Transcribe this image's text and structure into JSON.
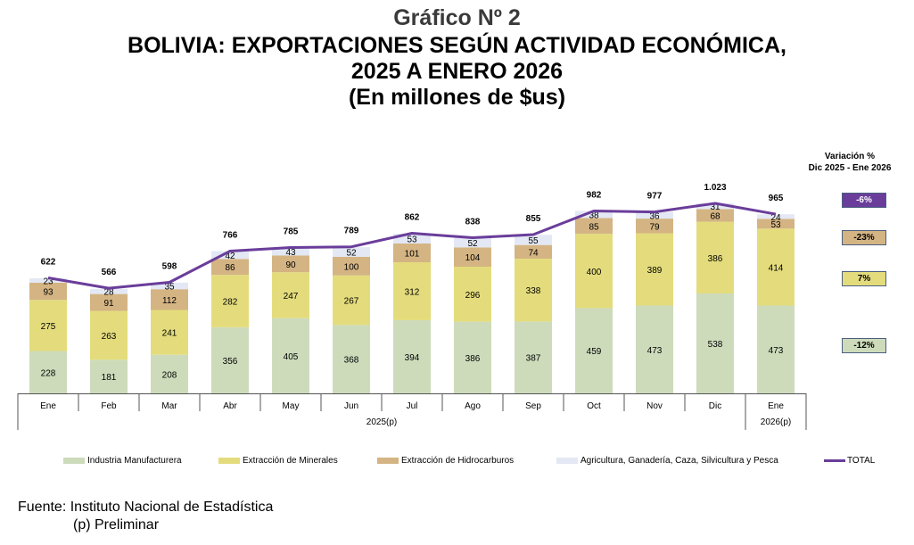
{
  "title": {
    "line1": "Gráfico Nº 2",
    "line2": "BOLIVIA: EXPORTACIONES SEGÚN ACTIVIDAD ECONÓMICA,",
    "line3": "2025 A ENERO 2026",
    "line4": "(En millones de $us)"
  },
  "variation": {
    "header_line1": "Variación %",
    "header_line2": "Dic 2025 - Ene 2026",
    "items": [
      {
        "series": "TOTAL",
        "value": "-6%",
        "color": "#6a3d9a",
        "text_color": "#ffffff"
      },
      {
        "series": "Extracción de Hidrocarburos",
        "value": "-23%",
        "color": "#d4b483",
        "text_color": "#000000"
      },
      {
        "series": "Extracción de Minerales",
        "value": "7%",
        "color": "#e4dc7c",
        "text_color": "#000000"
      },
      {
        "series": "Industria Manufacturera",
        "value": "-12%",
        "color": "#cddbbb",
        "text_color": "#000000"
      }
    ]
  },
  "footer": {
    "source": "Fuente: Instituto Nacional de Estadística",
    "note": "(p) Preliminar"
  },
  "chart_data": {
    "type": "bar",
    "stacked": true,
    "title": "BOLIVIA: EXPORTACIONES SEGÚN ACTIVIDAD ECONÓMICA, 2025 A ENERO 2026",
    "subtitle": "(En millones de $us)",
    "xlabel": "",
    "ylabel": "",
    "ylim": [
      0,
      1100
    ],
    "grid": false,
    "legend_position": "bottom",
    "categories": [
      "Ene",
      "Feb",
      "Mar",
      "Abr",
      "May",
      "Jun",
      "Jul",
      "Ago",
      "Sep",
      "Oct",
      "Nov",
      "Dic",
      "Ene"
    ],
    "category_groups": [
      {
        "label": "2025(p)",
        "count": 12
      },
      {
        "label": "2026(p)",
        "count": 1
      }
    ],
    "series": [
      {
        "name": "Industria Manufacturera",
        "color": "#cddbbb",
        "values": [
          228,
          181,
          208,
          356,
          405,
          368,
          394,
          386,
          387,
          459,
          473,
          538,
          473
        ]
      },
      {
        "name": "Extracción de Minerales",
        "color": "#e4dc7c",
        "values": [
          275,
          263,
          241,
          282,
          247,
          267,
          312,
          296,
          338,
          400,
          389,
          386,
          414
        ]
      },
      {
        "name": "Extracción de Hidrocarburos",
        "color": "#d4b483",
        "values": [
          93,
          91,
          112,
          86,
          90,
          100,
          101,
          104,
          74,
          85,
          79,
          68,
          53
        ]
      },
      {
        "name": "Agricultura, Ganadería, Caza, Silvicultura y Pesca",
        "color": "#e3e8f4",
        "values": [
          23,
          28,
          35,
          42,
          43,
          52,
          53,
          52,
          55,
          38,
          36,
          31,
          24
        ]
      }
    ],
    "total": {
      "name": "TOTAL",
      "type": "line",
      "color": "#6a3d9a",
      "values": [
        622,
        566,
        598,
        766,
        785,
        789,
        862,
        838,
        855,
        982,
        977,
        1023,
        965
      ],
      "labels": [
        "622",
        "566",
        "598",
        "766",
        "785",
        "789",
        "862",
        "838",
        "855",
        "982",
        "977",
        "1.023",
        "965"
      ]
    }
  }
}
